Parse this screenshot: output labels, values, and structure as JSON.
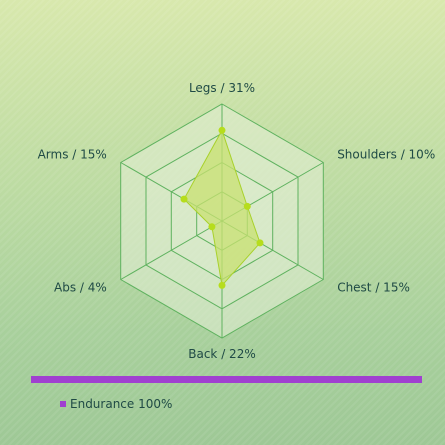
{
  "chart_data": {
    "type": "radar",
    "categories": [
      "Legs / 31%",
      "Shoulders / 10%",
      "Chest / 15%",
      "Back / 22%",
      "Abs / 4%",
      "Arms / 15%"
    ],
    "values": [
      31,
      10,
      15,
      22,
      4,
      15
    ],
    "rmax": 40,
    "grid_levels": 4
  },
  "progress": {
    "label": "Endurance 100%",
    "value": 100
  },
  "colors": {
    "series_fill": "#c8e070",
    "series_stroke": "#a8d12a",
    "point": "#b6dd1c",
    "grid": "#5fb25f",
    "grid_fill": "#e3efd6",
    "progress": "#a040d0"
  }
}
